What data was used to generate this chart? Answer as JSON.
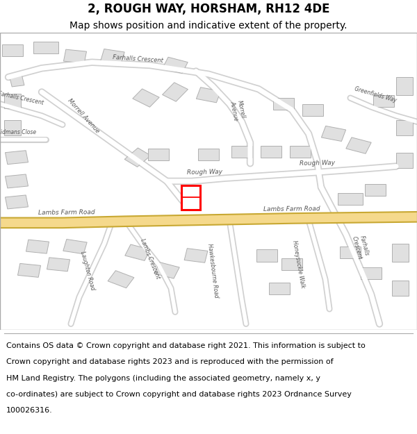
{
  "title": "2, ROUGH WAY, HORSHAM, RH12 4DE",
  "subtitle": "Map shows position and indicative extent of the property.",
  "footer_line1": "Contains OS data © Crown copyright and database right 2021. This information is subject to",
  "footer_line2": "Crown copyright and database rights 2023 and is reproduced with the permission of",
  "footer_line3": "HM Land Registry. The polygons (including the associated geometry, namely x, y",
  "footer_line4": "co-ordinates) are subject to Crown copyright and database rights 2023 Ordnance Survey",
  "footer_line5": "100026316.",
  "map_bg": "#f2f2f2",
  "road_color": "#ffffff",
  "road_outline": "#d0d0d0",
  "building_fill": "#e0e0e0",
  "building_outline": "#b0b0b0",
  "highlight_color": "#ff0000",
  "major_road_color": "#f5d98c",
  "major_road_outline": "#c8a832",
  "title_fontsize": 12,
  "subtitle_fontsize": 10,
  "footer_fontsize": 8,
  "label_fontsize": 6.5,
  "label_color": "#555555"
}
